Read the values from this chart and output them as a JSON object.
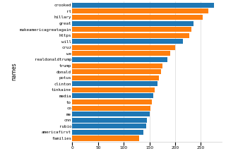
{
  "names": [
    "families",
    "americafirst",
    "rubio",
    "cnn",
    "me",
    "co",
    "to",
    "media",
    "tinkaine",
    "clinton",
    "potus",
    "donald",
    "trump",
    "realdonaldtrump",
    "we",
    "cruz",
    "will",
    "https",
    "makeamericagreatagain",
    "great",
    "hillary",
    "rt",
    "crooked"
  ],
  "values": [
    130,
    138,
    143,
    145,
    150,
    152,
    155,
    158,
    160,
    165,
    168,
    172,
    175,
    185,
    190,
    200,
    215,
    228,
    232,
    236,
    254,
    265,
    275
  ],
  "colors": [
    "#ff7f0e",
    "#1f77b4",
    "#1f77b4",
    "#1f77b4",
    "#1f77b4",
    "#ff7f0e",
    "#ff7f0e",
    "#1f77b4",
    "#ff7f0e",
    "#1f77b4",
    "#ff7f0e",
    "#ff7f0e",
    "#ff7f0e",
    "#1f77b4",
    "#ff7f0e",
    "#ff7f0e",
    "#1f77b4",
    "#ff7f0e",
    "#ff7f0e",
    "#1f77b4",
    "#ff7f0e",
    "#ff7f0e",
    "#1f77b4"
  ],
  "ylabel": "names",
  "bg_color": "#ffffff",
  "bar_height": 0.82,
  "grid_color": "#cccccc",
  "tick_fontsize": 4.2,
  "label_fontsize": 5.5,
  "xlim_max": 290
}
